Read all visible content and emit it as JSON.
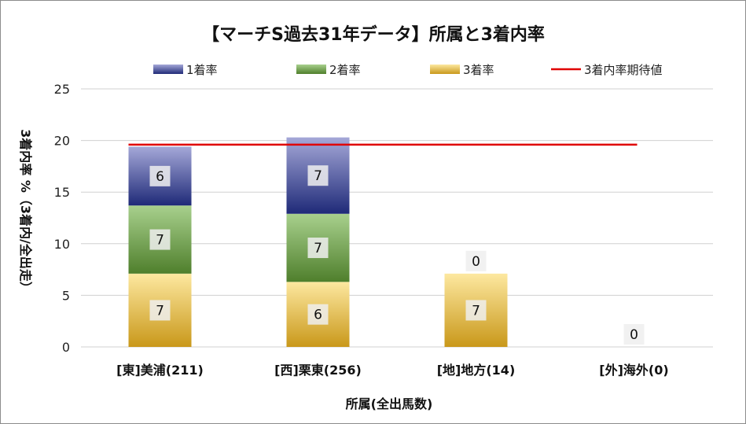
{
  "chart_data": {
    "type": "bar",
    "stacked": true,
    "title": "【マーチS過去31年データ】所属と3着内率",
    "xlabel": "所属(全出馬数)",
    "ylabel": "3着内率 %（3着内/全出走）",
    "ylim": [
      0,
      25
    ],
    "yticks": [
      0,
      5,
      10,
      15,
      20,
      25
    ],
    "grid": true,
    "legend_position": "top",
    "categories": [
      "[東]美浦(211)",
      "[西]栗東(256)",
      "[地]地方(14)",
      "[外]海外(0)"
    ],
    "series": [
      {
        "name": "3着率",
        "values": [
          7.1,
          6.3,
          7.1,
          0
        ],
        "labels": [
          "7",
          "6",
          "7",
          ""
        ],
        "color_top": "#fde8a0",
        "color_bottom": "#c9981a"
      },
      {
        "name": "2着率",
        "values": [
          6.6,
          6.6,
          0,
          0
        ],
        "labels": [
          "7",
          "7",
          "0",
          "0"
        ],
        "color_top": "#a8d08d",
        "color_bottom": "#4f7f2c"
      },
      {
        "name": "1着率",
        "values": [
          5.7,
          7.4,
          0,
          0
        ],
        "labels": [
          "6",
          "7",
          "",
          ""
        ],
        "color_top": "#a5a8d8",
        "color_bottom": "#1f2a78"
      }
    ],
    "expected_line": {
      "name": "3着内率期待値",
      "value": 19.6,
      "color": "#e00000"
    }
  }
}
